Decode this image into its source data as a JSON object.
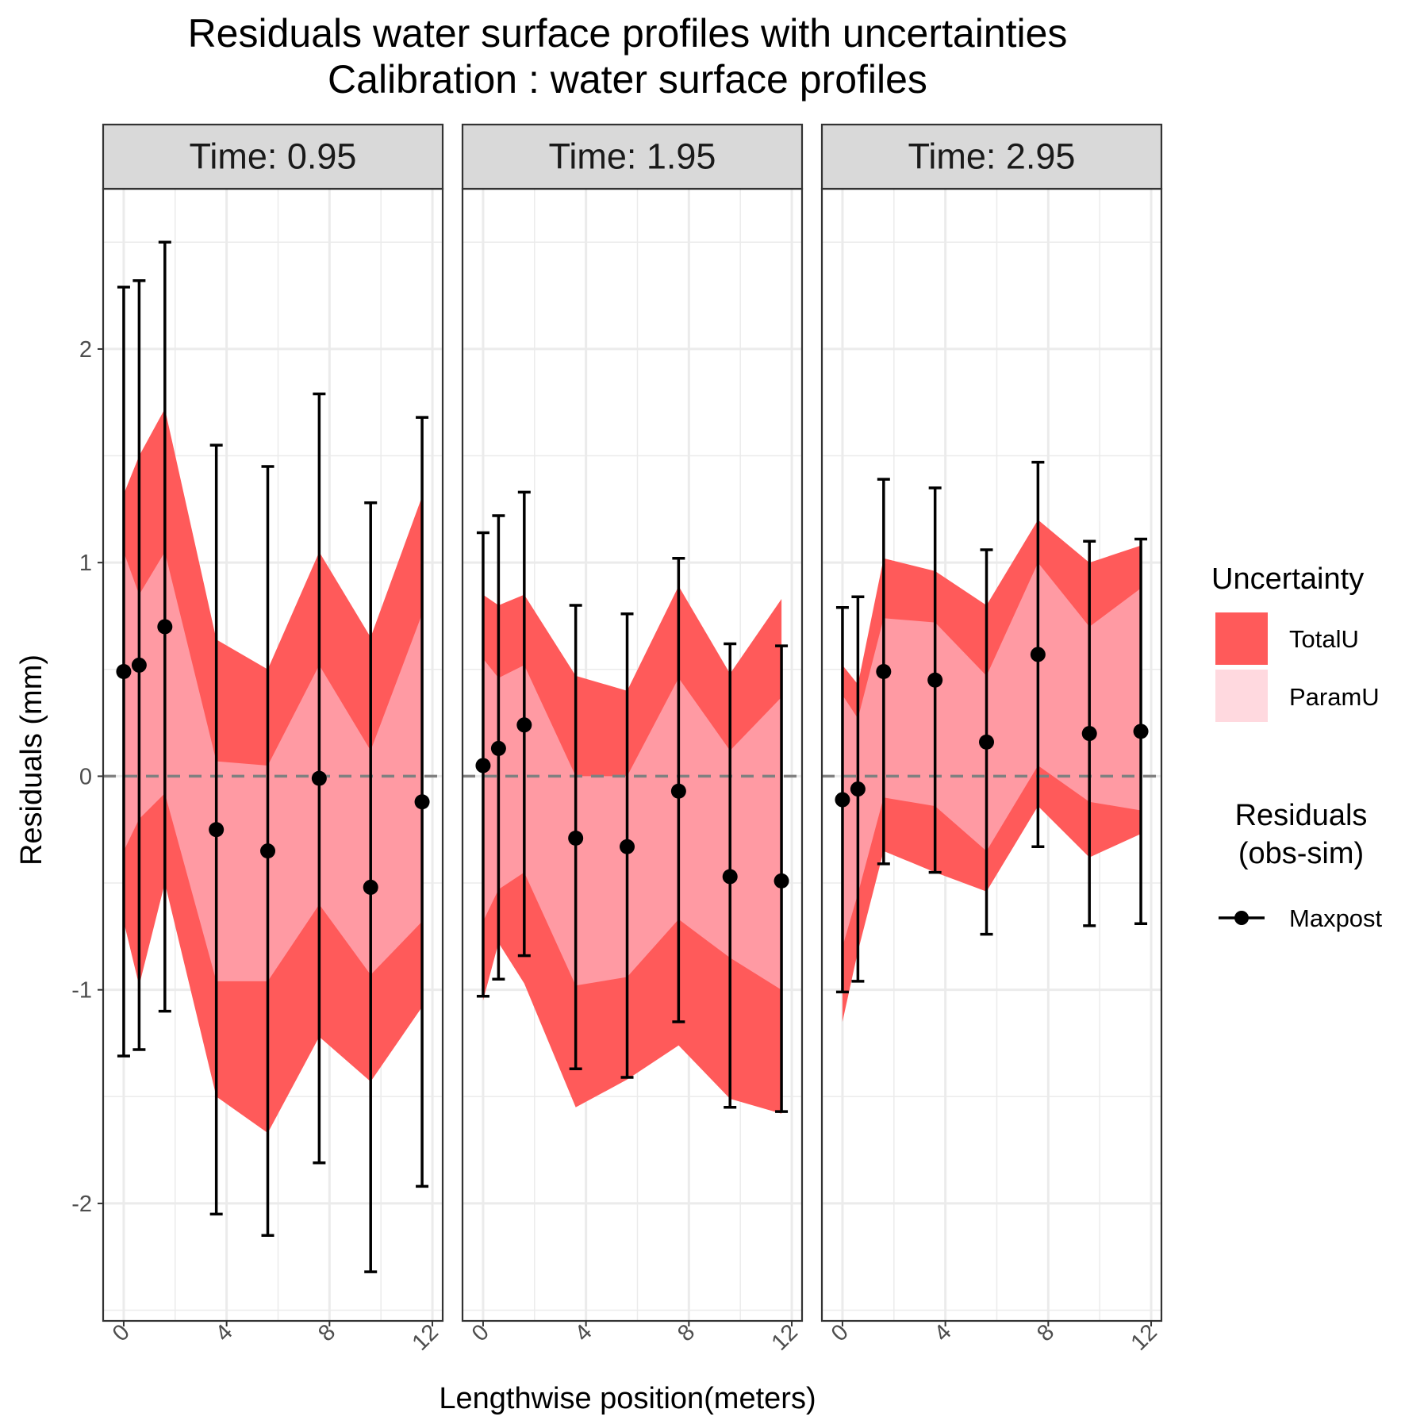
{
  "chart_data": {
    "type": "line",
    "title_line1": "Residuals water surface profiles with uncertainties",
    "title_line2": "Calibration : water surface profiles",
    "xlabel": "Lengthwise position(meters)",
    "ylabel": "Residuals (mm)",
    "xlim": [
      -0.8,
      12.4
    ],
    "ylim": [
      -2.55,
      2.75
    ],
    "xticks": [
      0,
      4,
      8,
      12
    ],
    "yticks": [
      -2,
      -1,
      0,
      1,
      2
    ],
    "reference_line_y": 0,
    "colors": {
      "totalU": "#ff5a5a",
      "paramU": "#ff9aa3",
      "paramU_legend": "#ffd9df",
      "points": "#000000",
      "zero_line": "#808080",
      "strip_fill": "#d9d9d9",
      "grid": "#ebebeb"
    },
    "legend": {
      "uncertainty_title": "Uncertainty",
      "uncertainty_items": [
        "TotalU",
        "ParamU"
      ],
      "residuals_title_line1": "Residuals",
      "residuals_title_line2": "(obs-sim)",
      "residuals_item": "Maxpost"
    },
    "panels": [
      {
        "label": "Time:  0.95",
        "x": [
          0,
          0.6,
          1.6,
          3.6,
          5.6,
          7.6,
          9.6,
          11.6
        ],
        "total_upper": [
          1.32,
          1.5,
          1.72,
          0.64,
          0.5,
          1.05,
          0.65,
          1.31
        ],
        "total_lower": [
          -0.68,
          -0.98,
          -0.5,
          -1.5,
          -1.67,
          -1.22,
          -1.43,
          -1.08
        ],
        "param_upper": [
          1.05,
          0.85,
          1.05,
          0.07,
          0.05,
          0.52,
          0.12,
          0.76
        ],
        "param_lower": [
          -0.35,
          -0.2,
          -0.08,
          -0.96,
          -0.96,
          -0.6,
          -0.93,
          -0.68
        ],
        "maxpost": [
          0.49,
          0.52,
          0.7,
          -0.25,
          -0.35,
          -0.01,
          -0.52,
          -0.12
        ],
        "err_upper": [
          2.29,
          2.32,
          2.5,
          1.55,
          1.45,
          1.79,
          1.28,
          1.68
        ],
        "err_lower": [
          -1.31,
          -1.28,
          -1.1,
          -2.05,
          -2.15,
          -1.81,
          -2.32,
          -1.92
        ]
      },
      {
        "label": "Time:  1.95",
        "x": [
          0,
          0.6,
          1.6,
          3.6,
          5.6,
          7.6,
          9.6,
          11.6
        ],
        "total_upper": [
          0.85,
          0.8,
          0.85,
          0.47,
          0.4,
          0.89,
          0.48,
          0.83
        ],
        "total_lower": [
          -1.05,
          -0.78,
          -0.97,
          -1.55,
          -1.42,
          -1.26,
          -1.51,
          -1.58
        ],
        "param_upper": [
          0.55,
          0.46,
          0.52,
          0.0,
          0.0,
          0.46,
          0.12,
          0.37
        ],
        "param_lower": [
          -0.68,
          -0.53,
          -0.45,
          -0.98,
          -0.94,
          -0.67,
          -0.85,
          -1.0
        ],
        "maxpost": [
          0.05,
          0.13,
          0.24,
          -0.29,
          -0.33,
          -0.07,
          -0.47,
          -0.49
        ],
        "err_upper": [
          1.14,
          1.22,
          1.33,
          0.8,
          0.76,
          1.02,
          0.62,
          0.61
        ],
        "err_lower": [
          -1.03,
          -0.95,
          -0.84,
          -1.37,
          -1.41,
          -1.15,
          -1.55,
          -1.57
        ]
      },
      {
        "label": "Time:  2.95",
        "x": [
          0,
          0.6,
          1.6,
          3.6,
          5.6,
          7.6,
          9.6,
          11.6
        ],
        "total_upper": [
          0.52,
          0.43,
          1.02,
          0.96,
          0.8,
          1.2,
          1.0,
          1.08
        ],
        "total_lower": [
          -1.15,
          -0.82,
          -0.35,
          -0.45,
          -0.54,
          -0.14,
          -0.38,
          -0.27
        ],
        "param_upper": [
          0.38,
          0.27,
          0.74,
          0.72,
          0.47,
          1.0,
          0.7,
          0.88
        ],
        "param_lower": [
          -0.8,
          -0.55,
          -0.1,
          -0.14,
          -0.35,
          0.05,
          -0.12,
          -0.16
        ],
        "maxpost": [
          -0.11,
          -0.06,
          0.49,
          0.45,
          0.16,
          0.57,
          0.2,
          0.21
        ],
        "err_upper": [
          0.79,
          0.84,
          1.39,
          1.35,
          1.06,
          1.47,
          1.1,
          1.11
        ],
        "err_lower": [
          -1.01,
          -0.96,
          -0.41,
          -0.45,
          -0.74,
          -0.33,
          -0.7,
          -0.69
        ]
      }
    ]
  }
}
